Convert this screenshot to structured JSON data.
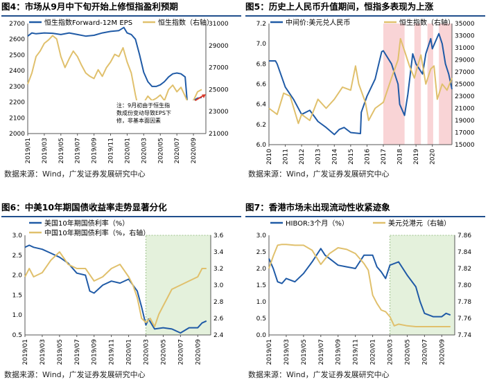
{
  "panels": [
    {
      "title": "图4：市场从9月中下旬开始上修恒指盈利预期",
      "source": "数据来源：Wind，广发证券发展研究中心",
      "chart_data": {
        "type": "line",
        "legend": [
          "恒生指数Forward-12M EPS",
          "恒生指数（右轴）"
        ],
        "x_ticks": [
          "2019/01",
          "2019/03",
          "2019/05",
          "2019/07",
          "2019/09",
          "2019/11",
          "2020/01",
          "2020/03",
          "2020/05",
          "2020/07",
          "2020/09"
        ],
        "xlim": [
          0,
          21.5
        ],
        "ylim_left": [
          2000,
          2700
        ],
        "yticks_left": [
          2000,
          2100,
          2200,
          2300,
          2400,
          2500,
          2600,
          2700
        ],
        "ylim_right": [
          21000,
          31000
        ],
        "yticks_right": [
          21000,
          23000,
          25000,
          27000,
          29000,
          31000
        ],
        "annotation": "注：9月初由于恒生指数成份变动导致EPS下修，非基本面因素",
        "series": [
          {
            "name": "恒生指数Forward-12M EPS",
            "axis": "left",
            "color": "#1f5aa6",
            "x": [
              0,
              0.5,
              1,
              2,
              3,
              4,
              5,
              6,
              7,
              8,
              9,
              10,
              11,
              11.6,
              12,
              12.5,
              13,
              13.5,
              14,
              14.5,
              15,
              15.5,
              16,
              16.5,
              17,
              17.5,
              18,
              18.5,
              19,
              19.3,
              19.6,
              20,
              20.5,
              21
            ],
            "y": [
              2620,
              2640,
              2635,
              2640,
              2638,
              2630,
              2640,
              2630,
              2620,
              2625,
              2640,
              2650,
              2655,
              2675,
              2640,
              2630,
              2600,
              2500,
              2390,
              2330,
              2300,
              2300,
              2310,
              2330,
              2360,
              2380,
              2385,
              2380,
              2360,
              2170,
              2200,
              2210,
              2225,
              2230
            ]
          },
          {
            "name": "恒生指数（右轴）",
            "axis": "right",
            "color": "#e0c06c",
            "x": [
              0,
              0.5,
              1,
              1.5,
              2,
              2.5,
              3,
              3.5,
              4,
              4.5,
              5,
              5.5,
              6,
              6.5,
              7,
              7.5,
              8,
              8.5,
              9,
              9.5,
              10,
              10.5,
              11,
              11.5,
              12,
              12.5,
              13,
              13.5,
              14,
              14.5,
              15,
              15.5,
              16,
              16.5,
              17,
              17.5,
              18,
              18.5,
              19,
              19.5,
              20,
              20.5,
              21
            ],
            "y": [
              25500,
              26500,
              28000,
              28500,
              29200,
              29500,
              29900,
              29600,
              28000,
              27000,
              27800,
              28500,
              28000,
              27200,
              26500,
              26200,
              26000,
              26800,
              26200,
              27000,
              27500,
              28200,
              28000,
              28800,
              27500,
              26500,
              24500,
              22800,
              23800,
              24400,
              24000,
              24200,
              24500,
              24000,
              25000,
              25400,
              24800,
              25200,
              24400,
              23500,
              24000,
              24800,
              25000
            ]
          }
        ]
      }
    },
    {
      "title": "图5：历史上人民币升值期间，恒指多表现为上涨",
      "source": "数据来源：Wind，广发证券发展研究中心",
      "chart_data": {
        "type": "line",
        "legend": [
          "中间价:美元兑人民币",
          "恒生指数（右轴）"
        ],
        "x_ticks": [
          "2010",
          "2011",
          "2012",
          "2013",
          "2014",
          "2015",
          "2016",
          "2017",
          "2018",
          "2019",
          "2020"
        ],
        "xlim": [
          2010,
          2021.2
        ],
        "ylim_left": [
          6.0,
          7.2
        ],
        "yticks_left": [
          6.0,
          6.2,
          6.4,
          6.6,
          6.8,
          7.0,
          7.2
        ],
        "ylim_right": [
          15000,
          35000
        ],
        "yticks_right": [
          15000,
          17000,
          19000,
          21000,
          23000,
          25000,
          27000,
          29000,
          31000,
          33000,
          35000
        ],
        "shaded_periods": [
          [
            2017.0,
            2018.3
          ],
          [
            2018.9,
            2019.3
          ],
          [
            2019.7,
            2020.05
          ],
          [
            2020.4,
            2021.2
          ]
        ],
        "series": [
          {
            "name": "中间价:美元兑人民币",
            "axis": "left",
            "color": "#1f5aa6",
            "x": [
              2010,
              2010.4,
              2010.5,
              2011,
              2011.5,
              2012,
              2012.5,
              2013,
              2013.5,
              2014,
              2014.3,
              2014.6,
              2015,
              2015.6,
              2015.65,
              2016,
              2016.5,
              2016.9,
              2017,
              2017.5,
              2017.9,
              2018,
              2018.3,
              2018.5,
              2018.8,
              2019,
              2019.4,
              2019.6,
              2019.9,
              2020,
              2020.4,
              2020.6,
              2020.8,
              2021,
              2021.2
            ],
            "y": [
              6.83,
              6.83,
              6.8,
              6.57,
              6.45,
              6.3,
              6.34,
              6.23,
              6.17,
              6.1,
              6.15,
              6.17,
              6.12,
              6.11,
              6.32,
              6.48,
              6.65,
              6.92,
              6.93,
              6.8,
              6.6,
              6.4,
              6.29,
              6.5,
              6.9,
              6.8,
              6.7,
              6.9,
              7.05,
              6.95,
              7.1,
              7.0,
              6.8,
              6.7,
              6.55
            ]
          },
          {
            "name": "恒生指数（右轴）",
            "axis": "right",
            "color": "#e0c06c",
            "x": [
              2010,
              2010.5,
              2010.9,
              2011.3,
              2011.8,
              2012,
              2012.5,
              2013,
              2013.5,
              2014,
              2014.5,
              2015,
              2015.3,
              2015.5,
              2015.9,
              2016.1,
              2016.5,
              2017,
              2017.5,
              2017.9,
              2018.05,
              2018.3,
              2018.6,
              2018.9,
              2019.1,
              2019.3,
              2019.6,
              2019.9,
              2020.1,
              2020.3,
              2020.6,
              2020.9,
              2021.2
            ],
            "y": [
              21000,
              20000,
              23500,
              23000,
              18500,
              20000,
              19000,
              22500,
              21000,
              22500,
              24500,
              24000,
              28000,
              25000,
              22000,
              19000,
              21000,
              22000,
              26000,
              29000,
              32500,
              30500,
              28000,
              26000,
              28000,
              29800,
              25000,
              27500,
              28000,
              22500,
              25000,
              24000,
              26000
            ]
          }
        ]
      }
    },
    {
      "title": "图6：中美10年期国债收益率走势显著分化",
      "source": "数据来源：Wind，广发证券发展研究中心",
      "chart_data": {
        "type": "line",
        "legend": [
          "美国10年期国债利率（%）",
          "中国10年期国债利率（%，右轴）"
        ],
        "x_ticks": [
          "2019/01",
          "2019/03",
          "2019/05",
          "2019/07",
          "2019/09",
          "2019/11",
          "2020/01",
          "2020/03",
          "2020/05",
          "2020/07",
          "2020/09"
        ],
        "xlim": [
          0,
          21.5
        ],
        "ylim_left": [
          0.5,
          3.0
        ],
        "yticks_left": [
          0.5,
          1.0,
          1.5,
          2.0,
          2.5,
          3.0
        ],
        "ylim_right": [
          2.4,
          3.6
        ],
        "yticks_right": [
          2.4,
          2.6,
          2.8,
          3.0,
          3.2,
          3.4,
          3.6
        ],
        "shaded_periods": [
          [
            14.0,
            21.5
          ]
        ],
        "series": [
          {
            "name": "美国10年期国债利率（%）",
            "axis": "left",
            "color": "#1f5aa6",
            "x": [
              0,
              0.5,
              1,
              2,
              3,
              4,
              5,
              6,
              7,
              7.5,
              8,
              9,
              10,
              11,
              12,
              13,
              13.5,
              14,
              14.3,
              15,
              16,
              17,
              18,
              19,
              20,
              20.5,
              21
            ],
            "y": [
              2.7,
              2.75,
              2.7,
              2.65,
              2.55,
              2.45,
              2.3,
              2.05,
              2.0,
              1.6,
              1.55,
              1.75,
              1.85,
              1.8,
              1.9,
              1.6,
              1.2,
              0.75,
              0.9,
              0.65,
              0.68,
              0.65,
              0.55,
              0.68,
              0.68,
              0.8,
              0.85
            ]
          },
          {
            "name": "中国10年期国债利率（%，右轴）",
            "axis": "right",
            "color": "#e0c06c",
            "x": [
              0,
              0.5,
              1,
              2,
              3,
              4,
              5,
              6,
              7,
              8,
              9,
              10,
              11,
              12,
              12.5,
              13,
              13.5,
              14,
              14.5,
              15,
              15.5,
              16,
              16.5,
              17,
              18,
              19,
              20,
              20.5,
              21
            ],
            "y": [
              3.1,
              3.2,
              3.1,
              3.15,
              3.3,
              3.4,
              3.25,
              3.2,
              3.2,
              3.05,
              3.1,
              3.2,
              3.25,
              3.1,
              3.0,
              2.85,
              2.6,
              2.55,
              2.6,
              2.5,
              2.65,
              2.75,
              2.85,
              2.95,
              3.0,
              3.05,
              3.1,
              3.2,
              3.2
            ]
          }
        ]
      }
    },
    {
      "title": "图7：香港市场未出现流动性收紧迹象",
      "source": "数据来源：Wind，广发证券发展研究中心",
      "chart_data": {
        "type": "line",
        "legend": [
          "HIBOR:3个月（%）",
          "美元兑港元（右轴）"
        ],
        "x_ticks": [
          "2019/01",
          "2019/03",
          "2019/05",
          "2019/07",
          "2019/09",
          "2019/11",
          "2020/01",
          "2020/03",
          "2020/05",
          "2020/07",
          "2020/09"
        ],
        "xlim": [
          0,
          21.5
        ],
        "ylim_left": [
          0.0,
          3.0
        ],
        "yticks_left": [
          0.0,
          0.5,
          1.0,
          1.5,
          2.0,
          2.5,
          3.0
        ],
        "ylim_right": [
          7.74,
          7.86
        ],
        "yticks_right": [
          7.74,
          7.76,
          7.78,
          7.8,
          7.82,
          7.84,
          7.86
        ],
        "shaded_periods": [
          [
            14.0,
            21.5
          ]
        ],
        "series": [
          {
            "name": "HIBOR:3个月（%）",
            "axis": "left",
            "color": "#1f5aa6",
            "x": [
              0,
              0.5,
              1,
              1.5,
              2,
              3,
              4,
              5,
              6,
              6.5,
              7,
              8,
              9,
              10,
              11,
              12,
              12.5,
              13,
              13.5,
              14,
              15,
              16,
              17,
              17.5,
              18,
              19,
              20,
              20.5,
              21
            ],
            "y": [
              2.3,
              2.0,
              1.6,
              1.55,
              1.7,
              1.6,
              1.85,
              2.2,
              2.6,
              2.4,
              2.3,
              2.1,
              2.05,
              2.0,
              2.4,
              2.4,
              2.05,
              1.9,
              1.7,
              2.1,
              2.2,
              1.8,
              1.45,
              1.0,
              0.65,
              0.55,
              0.55,
              0.65,
              0.6
            ]
          },
          {
            "name": "美元兑港元（右轴）",
            "axis": "right",
            "color": "#e0c06c",
            "x": [
              0,
              0.5,
              1,
              1.5,
              2,
              3,
              4,
              5,
              6,
              7,
              8,
              9,
              10,
              11,
              11.5,
              12,
              12.5,
              13,
              13.5,
              14,
              14.5,
              15,
              16,
              17,
              18,
              19,
              20,
              20.5,
              21
            ],
            "y": [
              7.82,
              7.835,
              7.848,
              7.849,
              7.849,
              7.848,
              7.848,
              7.842,
              7.825,
              7.838,
              7.845,
              7.843,
              7.838,
              7.826,
              7.818,
              7.788,
              7.778,
              7.77,
              7.768,
              7.762,
              7.751,
              7.753,
              7.751,
              7.75,
              7.75,
              7.75,
              7.75,
              7.75,
              7.75
            ]
          }
        ]
      }
    }
  ]
}
